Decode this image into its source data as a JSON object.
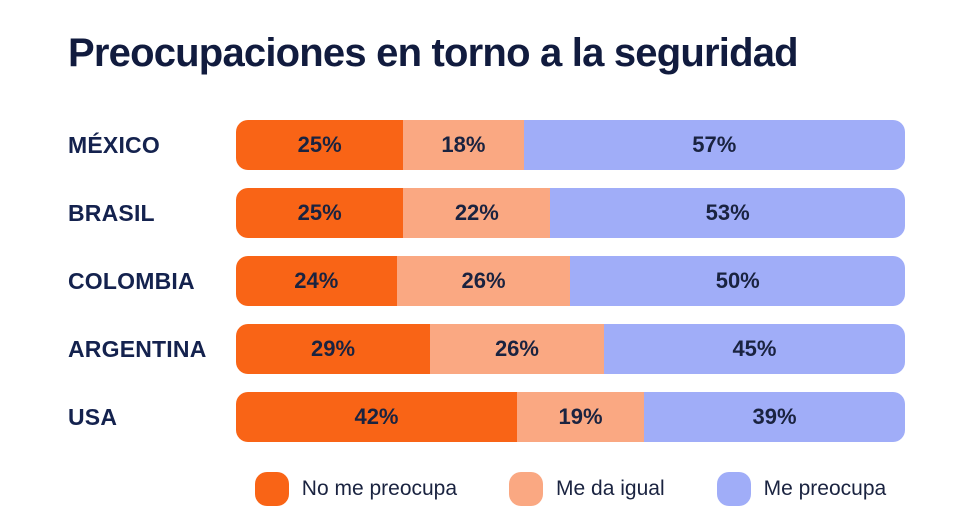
{
  "title": "Preocupaciones en torno a la seguridad",
  "colors": {
    "no_me_preocupa": "#f96416",
    "me_da_igual": "#faa882",
    "me_preocupa": "#a0adf8",
    "ink": "#14224e",
    "background": "#ffffff"
  },
  "chart_data": {
    "type": "bar",
    "orientation": "horizontal",
    "stacked": true,
    "unit": "%",
    "title": "Preocupaciones en torno a la seguridad",
    "categories": [
      "MÉXICO",
      "BRASIL",
      "COLOMBIA",
      "ARGENTINA",
      "USA"
    ],
    "series": [
      {
        "name": "No me preocupa",
        "color": "#f96416",
        "values": [
          25,
          25,
          24,
          29,
          42
        ]
      },
      {
        "name": "Me da igual",
        "color": "#faa882",
        "values": [
          18,
          22,
          26,
          26,
          19
        ]
      },
      {
        "name": "Me preocupa",
        "color": "#a0adf8",
        "values": [
          57,
          53,
          50,
          45,
          39
        ]
      }
    ],
    "x_range": [
      0,
      100
    ],
    "grid": false,
    "value_labels": true,
    "legend_position": "bottom"
  }
}
